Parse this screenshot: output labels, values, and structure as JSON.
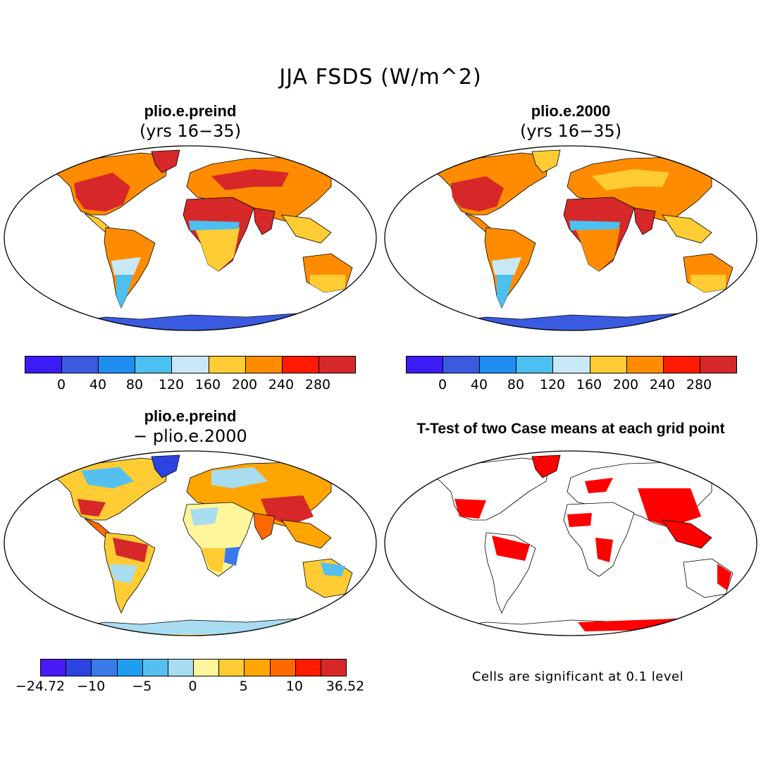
{
  "figure": {
    "title": "JJA FSDS (W/m^2)"
  },
  "panels": [
    {
      "id": "preind",
      "title": "plio.e.preind",
      "subtitle": "(yrs 16−35)"
    },
    {
      "id": "y2000",
      "title": "plio.e.2000",
      "subtitle": "(yrs 16−35)"
    },
    {
      "id": "diff",
      "title": "plio.e.preind",
      "subtitle": "− plio.e.2000"
    },
    {
      "id": "ttest",
      "title": "T-Test of two Case means at each grid point"
    }
  ],
  "colorbars": {
    "absolute": {
      "colors": [
        "#3b1cf5",
        "#3a5ae0",
        "#1f8ef0",
        "#4cc0f0",
        "#c8e8f7",
        "#ffcc33",
        "#ff8c00",
        "#ff1a00",
        "#d62828"
      ],
      "ticks": [
        "0",
        "40",
        "80",
        "120",
        "160",
        "200",
        "240",
        "280"
      ]
    },
    "difference": {
      "colors": [
        "#4a1cf5",
        "#2b44e0",
        "#3a7ae8",
        "#1f9ef0",
        "#55c0f0",
        "#a8dcf0",
        "#fff59a",
        "#ffcc33",
        "#ffa500",
        "#ff6a00",
        "#ff1a00",
        "#d62828"
      ],
      "ticks": [
        "−24.72",
        "−10",
        "−5",
        "0",
        "5",
        "10",
        "36.52"
      ]
    }
  },
  "notes": {
    "significance": "Cells are significant at 0.1 level",
    "sig_color": "#ff0000"
  }
}
